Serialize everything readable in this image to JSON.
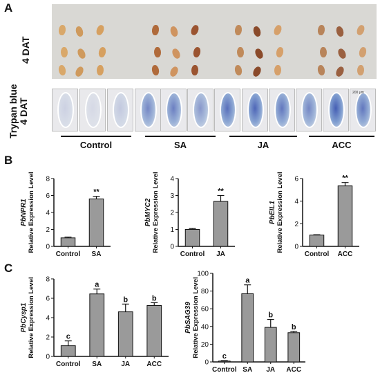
{
  "panel_A": {
    "letter": "A",
    "row1_label": "4 DAT",
    "row2_label": "Trypan blue\n4 DAT",
    "scale_label": "200 μm",
    "groups": [
      "Control",
      "SA",
      "JA",
      "ACC"
    ]
  },
  "panel_B": {
    "letter": "B"
  },
  "panel_C": {
    "letter": "C"
  },
  "chart_data": [
    {
      "type": "bar",
      "panel": "B",
      "gene": "PbNPR1",
      "ylabel": "Relative Expression Level",
      "categories": [
        "Control",
        "SA"
      ],
      "values": [
        1.0,
        5.6
      ],
      "errors": [
        0.1,
        0.3
      ],
      "ylim": [
        0,
        8
      ],
      "yticks": [
        0,
        2,
        4,
        6,
        8
      ],
      "labels": [
        "",
        "**"
      ]
    },
    {
      "type": "bar",
      "panel": "B",
      "gene": "PbMYC2",
      "ylabel": "Relative Expression Level",
      "categories": [
        "Control",
        "JA"
      ],
      "values": [
        1.0,
        2.65
      ],
      "errors": [
        0.05,
        0.35
      ],
      "ylim": [
        0,
        4
      ],
      "yticks": [
        0,
        1,
        2,
        3,
        4
      ],
      "labels": [
        "",
        "**"
      ]
    },
    {
      "type": "bar",
      "panel": "B",
      "gene": "PbEIL1",
      "ylabel": "Relative Expression Level",
      "categories": [
        "Control",
        "ACC"
      ],
      "values": [
        1.0,
        5.35
      ],
      "errors": [
        0.03,
        0.3
      ],
      "ylim": [
        0,
        6
      ],
      "yticks": [
        0,
        2,
        4,
        6
      ],
      "labels": [
        "",
        "**"
      ]
    },
    {
      "type": "bar",
      "panel": "C",
      "gene": "PbCysp1",
      "ylabel": "Relative Expression Level",
      "categories": [
        "Control",
        "SA",
        "JA",
        "ACC"
      ],
      "values": [
        1.1,
        6.45,
        4.6,
        5.25
      ],
      "errors": [
        0.5,
        0.5,
        0.8,
        0.3
      ],
      "ylim": [
        0,
        8
      ],
      "yticks": [
        0,
        2,
        4,
        6,
        8
      ],
      "labels": [
        "c",
        "a",
        "b",
        "b"
      ]
    },
    {
      "type": "bar",
      "panel": "C",
      "gene": "PbSAG39",
      "ylabel": "Relative Expression Level",
      "categories": [
        "Control",
        "SA",
        "JA",
        "ACC"
      ],
      "values": [
        1,
        77,
        39,
        33
      ],
      "errors": [
        0.5,
        10,
        9,
        1.5
      ],
      "ylim": [
        0,
        100
      ],
      "yticks": [
        0,
        20,
        40,
        60,
        80,
        100
      ],
      "labels": [
        "c",
        "a",
        "b",
        "b"
      ]
    }
  ]
}
